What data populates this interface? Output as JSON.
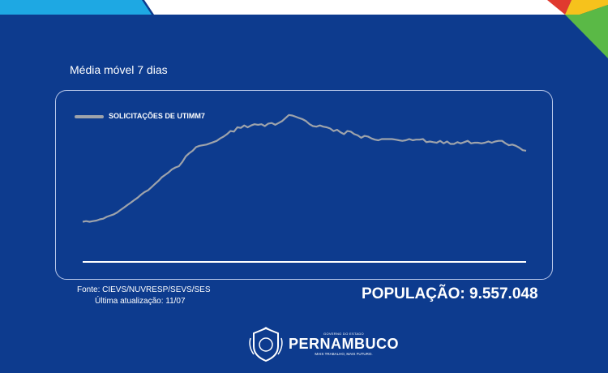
{
  "chart_data": {
    "type": "line",
    "subtitle": "Média móvel 7 dias",
    "series": [
      {
        "name": "SOLICITAÇÕES DE UTIMM7",
        "color": "#9ea3ab",
        "values": [
          65,
          66,
          65,
          66,
          67,
          69,
          70,
          73,
          75,
          77,
          80,
          84,
          88,
          92,
          96,
          100,
          104,
          109,
          113,
          116,
          121,
          126,
          131,
          137,
          141,
          145,
          150,
          153,
          155,
          162,
          171,
          176,
          180,
          186,
          188,
          189,
          190,
          192,
          194,
          196,
          200,
          203,
          207,
          212,
          211,
          218,
          217,
          221,
          218,
          221,
          223,
          222,
          223,
          220,
          224,
          225,
          222,
          225,
          228,
          233,
          238,
          237,
          235,
          233,
          231,
          228,
          223,
          220,
          219,
          221,
          219,
          218,
          216,
          212,
          214,
          210,
          207,
          212,
          211,
          207,
          205,
          201,
          204,
          203,
          200,
          198,
          197,
          199,
          199,
          199,
          199,
          198,
          197,
          196,
          197,
          199,
          197,
          198,
          198,
          199,
          194,
          195,
          194,
          193,
          196,
          192,
          195,
          191,
          191,
          194,
          192,
          194,
          196,
          192,
          193,
          193,
          192,
          193,
          195,
          193,
          195,
          196,
          196,
          192,
          189,
          190,
          188,
          185,
          181,
          180
        ]
      }
    ],
    "ylim": [
      0,
      260
    ],
    "grid": false,
    "legend": "top-left"
  },
  "footer": {
    "source": "Fonte: CIEVS/NUVRESP/SEVS/SES",
    "updated": "Última atualização: 11/07",
    "population": "POPULAÇÃO: 9.557.048"
  },
  "brand": {
    "small": "GOVERNO DO ESTADO",
    "name": "PERNAMBUCO",
    "tagline": "MAIS TRABALHO, MAIS FUTURO."
  },
  "colors": {
    "background": "#0d3b8e",
    "line": "#9ea3ab",
    "accent_red": "#e03a2f",
    "accent_yellow": "#f6c21c",
    "accent_green": "#5ab946",
    "accent_light_blue": "#1ea8e3"
  }
}
